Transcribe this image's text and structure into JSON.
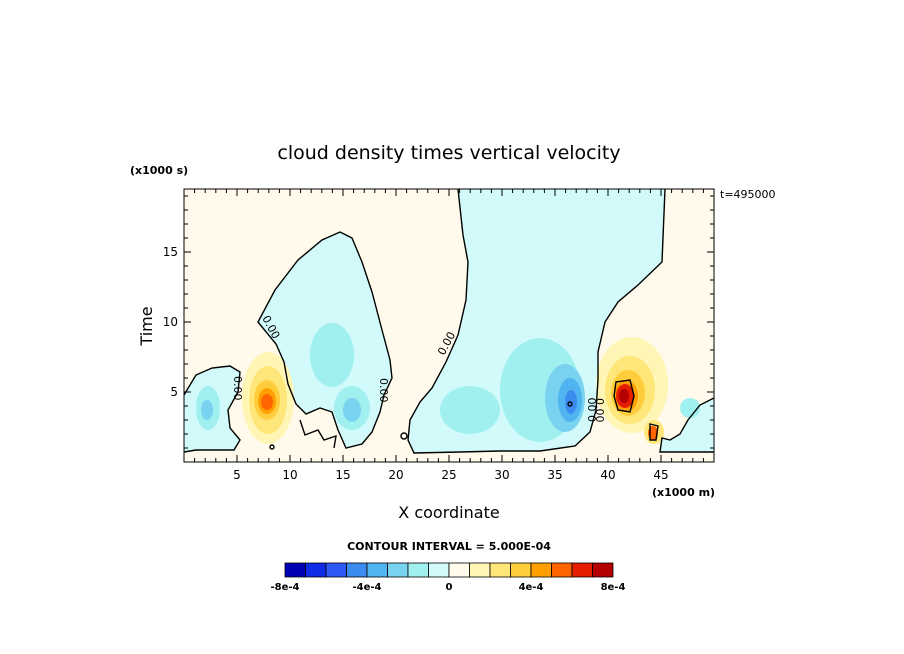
{
  "chart_data": {
    "type": "heatmap",
    "title": "cloud density times vertical velocity",
    "xlabel": "X coordinate",
    "ylabel": "Time",
    "x_units": "(x1000 m)",
    "y_units": "(x1000 s)",
    "time_stamp": "t=495000",
    "xlim": [
      0,
      50
    ],
    "ylim": [
      0,
      19.5
    ],
    "x_ticks": [
      5,
      10,
      15,
      20,
      25,
      30,
      35,
      40,
      45
    ],
    "x_tick_labels": [
      "5",
      "10",
      "15",
      "20",
      "25",
      "30",
      "35",
      "40",
      "45"
    ],
    "y_ticks": [
      5,
      10,
      15
    ],
    "y_tick_labels": [
      "5",
      "10",
      "15"
    ],
    "contour_interval_label": "CONTOUR INTERVAL = 5.000E-04",
    "contour_labels": [
      "0.00",
      "0.00",
      "0.00",
      "0.00",
      "0.00",
      "0.00"
    ],
    "colorbar": {
      "colors": [
        "#0000b4",
        "#0f2be6",
        "#2d5af5",
        "#3c8cf0",
        "#50b4f0",
        "#78d2f0",
        "#a0f0f0",
        "#d2fafa",
        "#fffaeb",
        "#fff5b4",
        "#ffe678",
        "#ffcd3c",
        "#ffa000",
        "#ff6400",
        "#e61e00",
        "#b40000"
      ],
      "tick_labels": [
        "-8e-4",
        "-4e-4",
        "0",
        "4e-4",
        "8e-4"
      ],
      "tick_values": [
        -0.0008,
        -0.0004,
        0,
        0.0004,
        0.0008
      ],
      "range": [
        -0.0008,
        0.0008
      ]
    },
    "features": [
      {
        "kind": "positive-max",
        "x": 8,
        "y": 4.5,
        "value": 0.0007
      },
      {
        "kind": "positive-max",
        "x": 41.5,
        "y": 5,
        "value": 0.0009
      },
      {
        "kind": "positive-max",
        "x": 44.5,
        "y": 2,
        "value": 0.0006
      },
      {
        "kind": "negative-min",
        "x": 36.5,
        "y": 4.5,
        "value": -0.0006
      },
      {
        "kind": "negative-min",
        "x": 15.5,
        "y": 4,
        "value": -0.0002
      },
      {
        "kind": "negative-min",
        "x": 13.5,
        "y": 9.5,
        "value": -0.0001
      },
      {
        "kind": "negative-min",
        "x": 2.5,
        "y": 4,
        "value": -0.0002
      }
    ]
  }
}
